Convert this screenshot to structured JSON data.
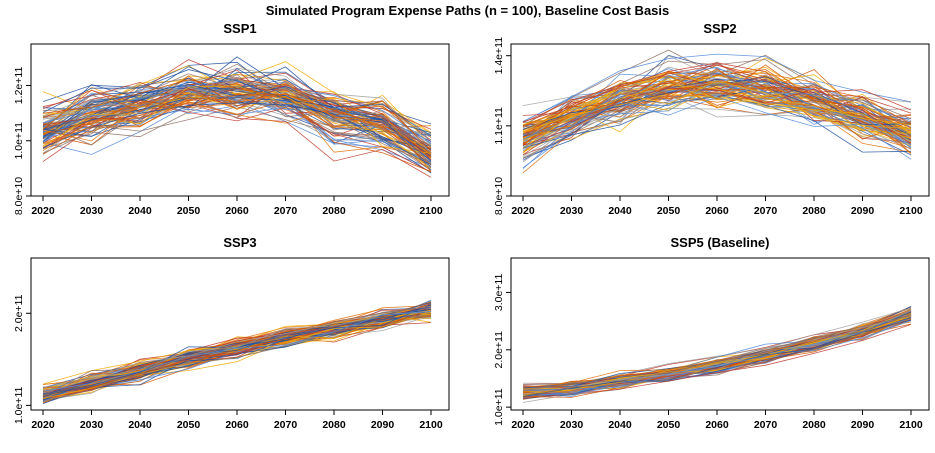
{
  "chart_data": {
    "type": "line",
    "title": "Simulated Program Expense Paths (n = 100), Baseline Cost Basis",
    "n_paths": 100,
    "series_palette": [
      "#4f86d6",
      "#f2a900",
      "#e0700a",
      "#c0392b",
      "#8d6e63",
      "#9e9e9e",
      "#d35400",
      "#1f4fa0"
    ],
    "panels": [
      {
        "title": "SSP1",
        "x": [
          2020,
          2030,
          2040,
          2050,
          2060,
          2070,
          2080,
          2090,
          2100
        ],
        "xticks": [
          "2020",
          "2030",
          "2040",
          "2050",
          "2060",
          "2070",
          "2080",
          "2090",
          "2100"
        ],
        "ylim": [
          80000000000,
          135000000000
        ],
        "yticks": [
          80000000000,
          100000000000,
          120000000000
        ],
        "ytick_labels": [
          "8.0e+10",
          "1.0e+11",
          "1.2e+11"
        ],
        "mean_path": [
          104000000000,
          110000000000,
          114000000000,
          118000000000,
          118500000000,
          117000000000,
          110000000000,
          106000000000,
          95000000000
        ],
        "spread": 4500000000
      },
      {
        "title": "SSP2",
        "x": [
          2020,
          2030,
          2040,
          2050,
          2060,
          2070,
          2080,
          2090,
          2100
        ],
        "xticks": [
          "2020",
          "2030",
          "2040",
          "2050",
          "2060",
          "2070",
          "2080",
          "2090",
          "2100"
        ],
        "ylim": [
          80000000000,
          145000000000
        ],
        "yticks": [
          80000000000,
          110000000000,
          140000000000
        ],
        "ytick_labels": [
          "8.0e+10",
          "1.1e+11",
          "1.4e+11"
        ],
        "mean_path": [
          104000000000,
          114000000000,
          121000000000,
          126000000000,
          127000000000,
          125000000000,
          120000000000,
          113000000000,
          106000000000
        ],
        "spread": 5000000000
      },
      {
        "title": "SSP3",
        "x": [
          2020,
          2030,
          2040,
          2050,
          2060,
          2070,
          2080,
          2090,
          2100
        ],
        "xticks": [
          "2020",
          "2030",
          "2040",
          "2050",
          "2060",
          "2070",
          "2080",
          "2090",
          "2100"
        ],
        "ylim": [
          95000000000,
          260000000000
        ],
        "yticks": [
          100000000000,
          200000000000
        ],
        "ytick_labels": [
          "1.0e+11",
          "2.0e+11"
        ],
        "mean_path": [
          112000000000,
          124000000000,
          138000000000,
          152000000000,
          163000000000,
          174000000000,
          183000000000,
          193000000000,
          204000000000
        ],
        "spread": 5000000000
      },
      {
        "title": "SSP5 (Baseline)",
        "x": [
          2020,
          2030,
          2040,
          2050,
          2060,
          2070,
          2080,
          2090,
          2100
        ],
        "xticks": [
          "2020",
          "2030",
          "2040",
          "2050",
          "2060",
          "2070",
          "2080",
          "2090",
          "2100"
        ],
        "ylim": [
          95000000000,
          360000000000
        ],
        "yticks": [
          100000000000,
          200000000000,
          300000000000
        ],
        "ytick_labels": [
          "1.0e+11",
          "2.0e+11",
          "3.0e+11"
        ],
        "mean_path": [
          125000000000,
          133000000000,
          145000000000,
          157000000000,
          172000000000,
          190000000000,
          210000000000,
          232000000000,
          262000000000
        ],
        "spread": 6000000000
      }
    ]
  }
}
